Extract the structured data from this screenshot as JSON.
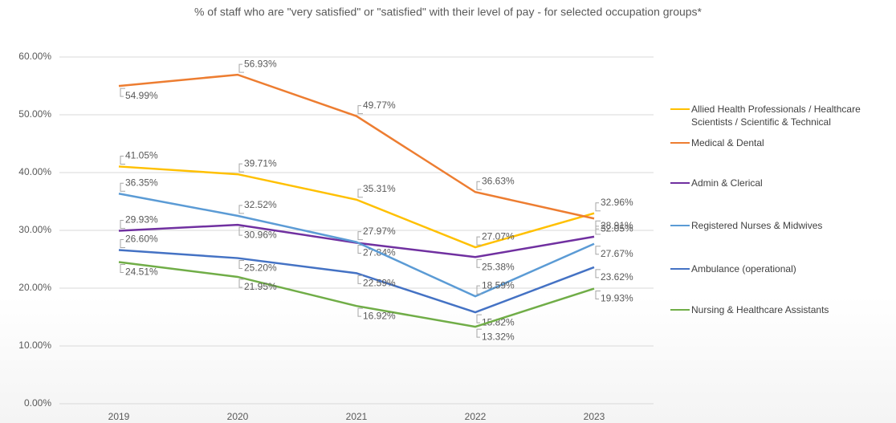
{
  "chart_data": {
    "type": "line",
    "title": "% of staff who are \"very satisfied\" or \"satisfied\" with their level of pay - for selected occupation groups*",
    "categories": [
      "2019",
      "2020",
      "2021",
      "2022",
      "2023"
    ],
    "ylim": [
      0,
      60
    ],
    "yticks": [
      {
        "value": 0,
        "label": "0.00%"
      },
      {
        "value": 10,
        "label": "10.00%"
      },
      {
        "value": 20,
        "label": "20.00%"
      },
      {
        "value": 30,
        "label": "30.00%"
      },
      {
        "value": 40,
        "label": "40.00%"
      },
      {
        "value": 50,
        "label": "50.00%"
      },
      {
        "value": 60,
        "label": "60.00%"
      }
    ],
    "grid": true,
    "legend": "right",
    "series": [
      {
        "name": "Allied Health Professionals / Healthcare Scientists / Scientific & Technical",
        "color": "#FFC000",
        "values": [
          41.05,
          39.71,
          35.31,
          27.07,
          32.96
        ],
        "value_labels": [
          "41.05%",
          "39.71%",
          "35.31%",
          "27.07%",
          "32.96%"
        ]
      },
      {
        "name": "Medical & Dental",
        "color": "#ED7D31",
        "values": [
          54.99,
          56.93,
          49.77,
          36.63,
          32.05
        ],
        "value_labels": [
          "54.99%",
          "56.93%",
          "49.77%",
          "36.63%",
          "32.05%"
        ]
      },
      {
        "name": "Admin & Clerical",
        "color": "#7030A0",
        "values": [
          29.93,
          30.96,
          27.84,
          25.38,
          28.91
        ],
        "value_labels": [
          "29.93%",
          "30.96%",
          "27.84%",
          "25.38%",
          "28.91%"
        ]
      },
      {
        "name": "Registered Nurses & Midwives",
        "color": "#5B9BD5",
        "values": [
          36.35,
          32.52,
          27.97,
          18.59,
          27.67
        ],
        "value_labels": [
          "36.35%",
          "32.52%",
          "27.97%",
          "18.59%",
          "27.67%"
        ]
      },
      {
        "name": "Ambulance (operational)",
        "color": "#4472C4",
        "values": [
          26.6,
          25.2,
          22.59,
          15.82,
          23.62
        ],
        "value_labels": [
          "26.60%",
          "25.20%",
          "22.59%",
          "15.82%",
          "23.62%"
        ]
      },
      {
        "name": "Nursing & Healthcare Assistants",
        "color": "#70AD47",
        "values": [
          24.51,
          21.95,
          16.92,
          13.32,
          19.93
        ],
        "value_labels": [
          "24.51%",
          "21.95%",
          "16.92%",
          "13.32%",
          "19.93%"
        ]
      }
    ]
  }
}
